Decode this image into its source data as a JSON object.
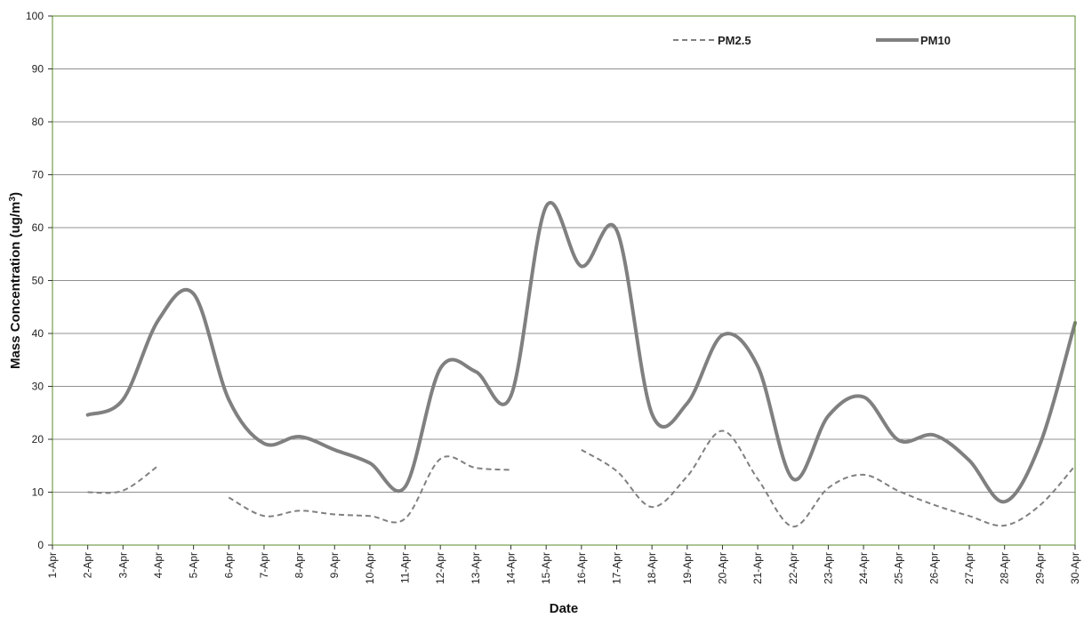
{
  "chart_data": {
    "type": "line",
    "xlabel": "Date",
    "ylabel_main": "Mass Concentration (ug/m",
    "ylabel_sup": "3",
    "ylabel_close": ")",
    "ylim": [
      0,
      100
    ],
    "yticks": [
      0,
      10,
      20,
      30,
      40,
      50,
      60,
      70,
      80,
      90,
      100
    ],
    "grid": true,
    "legend_position": "top-right",
    "categories": [
      "1-Apr",
      "2-Apr",
      "3-Apr",
      "4-Apr",
      "5-Apr",
      "6-Apr",
      "7-Apr",
      "8-Apr",
      "9-Apr",
      "10-Apr",
      "11-Apr",
      "12-Apr",
      "13-Apr",
      "14-Apr",
      "15-Apr",
      "16-Apr",
      "17-Apr",
      "18-Apr",
      "19-Apr",
      "20-Apr",
      "21-Apr",
      "22-Apr",
      "23-Apr",
      "24-Apr",
      "25-Apr",
      "26-Apr",
      "27-Apr",
      "28-Apr",
      "29-Apr",
      "30-Apr"
    ],
    "series": [
      {
        "name": "PM2.5",
        "style": "dashed",
        "color": "#808080",
        "values": [
          null,
          10,
          10.3,
          15,
          null,
          9,
          5.5,
          6.5,
          5.8,
          5.5,
          5,
          16.3,
          14.6,
          14.2,
          null,
          18,
          14,
          7.2,
          13,
          21.6,
          12.5,
          3.5,
          10.8,
          13.3,
          10.2,
          7.6,
          5.5,
          3.7,
          7.5,
          15
        ]
      },
      {
        "name": "PM10",
        "style": "solid",
        "color": "#808080",
        "values": [
          null,
          24.6,
          27.5,
          42.5,
          47.5,
          27.5,
          19.2,
          20.5,
          18,
          15.5,
          11,
          33.4,
          32.8,
          28.2,
          64,
          52.7,
          59.5,
          24.8,
          26.8,
          39.7,
          33.8,
          12.5,
          24.4,
          28,
          19.8,
          20.8,
          16,
          8.2,
          19,
          42
        ]
      }
    ]
  },
  "colors": {
    "plot_border": "#5a8a2a",
    "gridline": "#909090",
    "series_line": "#808080"
  }
}
